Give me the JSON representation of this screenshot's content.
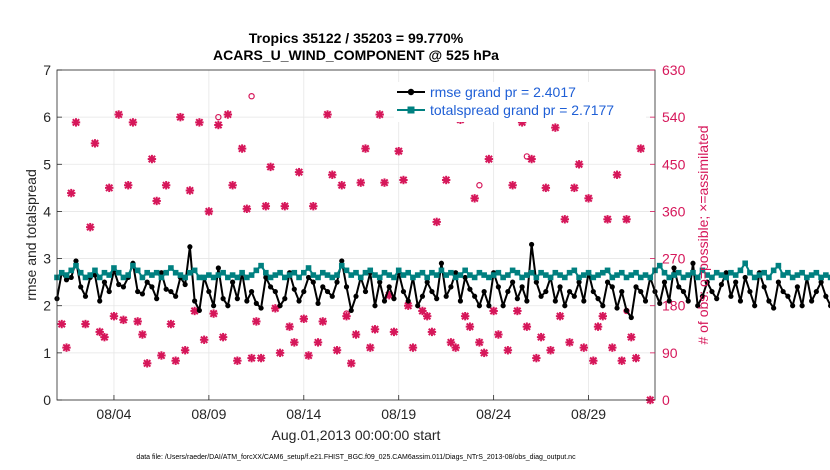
{
  "chart_data": {
    "type": "line",
    "title_line1": "Tropics 35122 / 35203 = 99.770%",
    "title_line2": "ACARS_U_WIND_COMPONENT @ 525 hPa",
    "xlabel": "Aug.01,2013 00:00:00 start",
    "ylabel": "rmse and totalspread",
    "y2label": "# of obs: o=possible; ×=assimilated",
    "ylim": [
      0,
      7
    ],
    "y2lim": [
      0,
      630
    ],
    "xlim": [
      0,
      31.5
    ],
    "x_tick_labels": [
      "08/04",
      "08/09",
      "08/14",
      "08/19",
      "08/24",
      "08/29"
    ],
    "x_tick_days": [
      3,
      8,
      13,
      18,
      23,
      28
    ],
    "y_ticks": [
      0,
      1,
      2,
      3,
      4,
      5,
      6,
      7
    ],
    "y2_ticks": [
      0,
      90,
      180,
      270,
      360,
      450,
      540,
      630
    ],
    "grid": true,
    "legend_placement": "top-right",
    "series": [
      {
        "name": "rmse grand pr = 2.4017",
        "color": "#000000",
        "x_start": 0,
        "x_step": 0.25,
        "values": [
          2.15,
          2.7,
          2.55,
          2.6,
          2.95,
          2.4,
          2.2,
          2.6,
          2.65,
          2.1,
          2.5,
          2.3,
          2.75,
          2.45,
          2.4,
          2.6,
          2.9,
          2.3,
          2.25,
          2.5,
          2.4,
          2.15,
          2.7,
          2.35,
          2.3,
          2.2,
          2.6,
          2.45,
          3.25,
          2.1,
          1.9,
          2.6,
          2.3,
          2.0,
          2.8,
          2.15,
          2.0,
          2.5,
          2.15,
          2.7,
          2.1,
          2.3,
          2.05,
          1.95,
          2.6,
          2.4,
          2.3,
          2.0,
          2.15,
          2.7,
          2.35,
          2.1,
          2.3,
          2.6,
          2.5,
          2.05,
          2.4,
          2.3,
          2.2,
          2.5,
          2.95,
          2.4,
          1.9,
          2.2,
          2.6,
          2.3,
          2.7,
          2.0,
          2.5,
          2.1,
          2.4,
          2.15,
          2.7,
          2.3,
          2.1,
          2.6,
          2.0,
          2.2,
          2.5,
          2.3,
          2.15,
          2.9,
          2.2,
          2.4,
          2.7,
          2.1,
          2.6,
          2.35,
          2.2,
          2.0,
          2.3,
          2.0,
          2.7,
          2.4,
          2.0,
          2.3,
          2.5,
          2.15,
          2.4,
          2.1,
          3.3,
          2.5,
          2.2,
          2.3,
          2.6,
          2.1,
          2.4,
          2.0,
          2.3,
          2.2,
          2.5,
          2.1,
          2.7,
          2.3,
          2.15,
          2.0,
          2.5,
          2.4,
          1.95,
          2.3,
          1.9,
          1.75,
          2.4,
          2.3,
          2.1,
          2.6,
          2.3,
          2.05,
          2.5,
          2.1,
          2.8,
          2.4,
          2.3,
          2.1,
          2.9,
          2.0,
          2.2,
          2.5,
          2.3,
          2.15,
          2.45,
          2.7,
          2.2,
          2.5,
          2.1,
          2.6,
          2.3,
          2.0,
          2.7,
          2.4,
          2.1,
          1.95,
          2.5,
          2.3,
          2.2,
          2.0,
          2.4,
          2.0,
          2.6,
          2.1,
          2.3,
          2.5,
          2.2,
          2.0,
          2.4,
          2.1,
          1.9,
          2.3,
          2.0,
          2.2,
          2.4,
          2.0,
          2.15,
          1.95,
          2.3,
          2.05,
          2.45,
          2.0,
          2.2,
          1.95
        ]
      },
      {
        "name": "totalspread grand pr = 2.7177",
        "color": "#008080",
        "x_start": 0,
        "x_step": 0.25,
        "values": [
          2.6,
          2.7,
          2.65,
          2.75,
          2.85,
          2.7,
          2.6,
          2.65,
          2.75,
          2.6,
          2.7,
          2.65,
          2.8,
          2.7,
          2.6,
          2.65,
          2.85,
          2.75,
          2.6,
          2.7,
          2.65,
          2.7,
          2.6,
          2.7,
          2.8,
          2.7,
          2.65,
          2.6,
          2.7,
          2.75,
          2.6,
          2.6,
          2.65,
          2.6,
          2.65,
          2.7,
          2.6,
          2.65,
          2.6,
          2.7,
          2.6,
          2.65,
          2.75,
          2.85,
          2.7,
          2.6,
          2.65,
          2.7,
          2.6,
          2.65,
          2.7,
          2.6,
          2.7,
          2.8,
          2.65,
          2.6,
          2.7,
          2.65,
          2.6,
          2.65,
          2.85,
          2.75,
          2.65,
          2.7,
          2.6,
          2.7,
          2.75,
          2.65,
          2.6,
          2.7,
          2.65,
          2.6,
          2.75,
          2.65,
          2.7,
          2.6,
          2.65,
          2.7,
          2.6,
          2.7,
          2.65,
          2.75,
          2.65,
          2.7,
          2.6,
          2.65,
          2.75,
          2.65,
          2.6,
          2.7,
          2.65,
          2.6,
          2.65,
          2.7,
          2.6,
          2.65,
          2.75,
          2.7,
          2.6,
          2.65,
          2.7,
          2.6,
          2.7,
          2.65,
          2.6,
          2.7,
          2.65,
          2.6,
          2.7,
          2.75,
          2.6,
          2.65,
          2.7,
          2.6,
          2.65,
          2.7,
          2.75,
          2.6,
          2.65,
          2.7,
          2.6,
          2.65,
          2.7,
          2.6,
          2.65,
          2.6,
          2.75,
          2.85,
          2.7,
          2.6,
          2.65,
          2.7,
          2.6,
          2.65,
          2.7,
          2.6,
          2.75,
          2.65,
          2.6,
          2.7,
          2.65,
          2.6,
          2.7,
          2.65,
          2.75,
          2.9,
          2.7,
          2.6,
          2.65,
          2.7,
          2.6,
          2.75,
          2.85,
          2.65,
          2.7,
          2.6,
          2.65,
          2.7,
          2.6,
          2.65,
          2.7,
          2.6,
          2.65,
          2.6,
          2.7,
          2.6,
          2.65,
          2.6,
          2.7,
          2.65,
          2.6,
          2.65,
          2.6,
          2.7,
          2.6,
          2.65,
          2.6,
          2.55
        ]
      },
      {
        "name": "# of obs assimilated",
        "color": "#d6175a",
        "marker": "x",
        "points": [
          [
            0.25,
            145
          ],
          [
            0.5,
            100
          ],
          [
            0.75,
            395
          ],
          [
            1.0,
            530
          ],
          [
            1.5,
            145
          ],
          [
            1.75,
            330
          ],
          [
            2.0,
            490
          ],
          [
            2.25,
            130
          ],
          [
            2.5,
            120
          ],
          [
            2.75,
            405
          ],
          [
            3.0,
            160
          ],
          [
            3.25,
            545
          ],
          [
            3.5,
            153
          ],
          [
            3.75,
            410
          ],
          [
            4.0,
            530
          ],
          [
            4.25,
            150
          ],
          [
            4.5,
            125
          ],
          [
            4.75,
            70
          ],
          [
            5.0,
            460
          ],
          [
            5.25,
            380
          ],
          [
            5.5,
            85
          ],
          [
            5.75,
            410
          ],
          [
            6.0,
            145
          ],
          [
            6.25,
            75
          ],
          [
            6.5,
            540
          ],
          [
            6.75,
            95
          ],
          [
            7.0,
            400
          ],
          [
            7.25,
            170
          ],
          [
            7.5,
            530
          ],
          [
            7.75,
            115
          ],
          [
            8.0,
            360
          ],
          [
            8.25,
            165
          ],
          [
            8.5,
            525
          ],
          [
            8.75,
            120
          ],
          [
            9.0,
            545
          ],
          [
            9.25,
            410
          ],
          [
            9.5,
            75
          ],
          [
            9.75,
            480
          ],
          [
            10.0,
            365
          ],
          [
            10.25,
            80
          ],
          [
            10.5,
            150
          ],
          [
            10.75,
            80
          ],
          [
            11.0,
            370
          ],
          [
            11.25,
            445
          ],
          [
            11.5,
            175
          ],
          [
            11.75,
            90
          ],
          [
            12.0,
            370
          ],
          [
            12.25,
            140
          ],
          [
            12.5,
            110
          ],
          [
            12.75,
            435
          ],
          [
            13.0,
            155
          ],
          [
            13.25,
            85
          ],
          [
            13.5,
            370
          ],
          [
            13.75,
            110
          ],
          [
            14.0,
            150
          ],
          [
            14.25,
            545
          ],
          [
            14.5,
            430
          ],
          [
            14.75,
            95
          ],
          [
            15.0,
            410
          ],
          [
            15.25,
            160
          ],
          [
            15.5,
            70
          ],
          [
            15.75,
            125
          ],
          [
            16.0,
            415
          ],
          [
            16.25,
            480
          ],
          [
            16.5,
            100
          ],
          [
            16.75,
            135
          ],
          [
            17.0,
            545
          ],
          [
            17.25,
            415
          ],
          [
            17.5,
            200
          ],
          [
            17.75,
            130
          ],
          [
            18.0,
            475
          ],
          [
            18.25,
            420
          ],
          [
            18.5,
            180
          ],
          [
            18.75,
            100
          ],
          [
            19.0,
            585
          ],
          [
            19.25,
            170
          ],
          [
            19.5,
            160
          ],
          [
            19.75,
            130
          ],
          [
            20.0,
            340
          ],
          [
            20.25,
            545
          ],
          [
            20.5,
            420
          ],
          [
            20.75,
            110
          ],
          [
            21.0,
            100
          ],
          [
            21.25,
            535
          ],
          [
            21.5,
            160
          ],
          [
            21.75,
            140
          ],
          [
            22.0,
            385
          ],
          [
            22.25,
            110
          ],
          [
            22.5,
            90
          ],
          [
            22.75,
            460
          ],
          [
            23.0,
            170
          ],
          [
            23.25,
            125
          ],
          [
            23.5,
            570
          ],
          [
            23.75,
            95
          ],
          [
            24.0,
            410
          ],
          [
            24.25,
            170
          ],
          [
            24.5,
            530
          ],
          [
            24.75,
            140
          ],
          [
            25.0,
            460
          ],
          [
            25.25,
            80
          ],
          [
            25.5,
            120
          ],
          [
            25.75,
            405
          ],
          [
            26.0,
            95
          ],
          [
            26.25,
            520
          ],
          [
            26.5,
            160
          ],
          [
            26.75,
            345
          ],
          [
            27.0,
            110
          ],
          [
            27.25,
            405
          ],
          [
            27.5,
            450
          ],
          [
            27.75,
            100
          ],
          [
            28.0,
            385
          ],
          [
            28.25,
            75
          ],
          [
            28.5,
            140
          ],
          [
            28.75,
            160
          ],
          [
            29.0,
            345
          ],
          [
            29.25,
            100
          ],
          [
            29.5,
            430
          ],
          [
            29.75,
            75
          ],
          [
            30.0,
            345
          ],
          [
            30.25,
            120
          ],
          [
            30.5,
            80
          ],
          [
            30.75,
            480
          ],
          [
            31.25,
            0
          ]
        ]
      },
      {
        "name": "# of obs possible",
        "color": "#d6175a",
        "marker": "o",
        "points": [
          [
            8.5,
            540
          ],
          [
            10.25,
            580
          ],
          [
            15.25,
            165
          ],
          [
            22.25,
            410
          ],
          [
            23.25,
            576
          ],
          [
            24.75,
            465
          ],
          [
            30.0,
            170
          ]
        ]
      }
    ],
    "footer": "data file: /Users/raeder/DAI/ATM_forcXX/CAM6_setup/f.e21.FHIST_BGC.f09_025.CAM6assim.011/Diags_NTrS_2013-08/obs_diag_output.nc"
  }
}
